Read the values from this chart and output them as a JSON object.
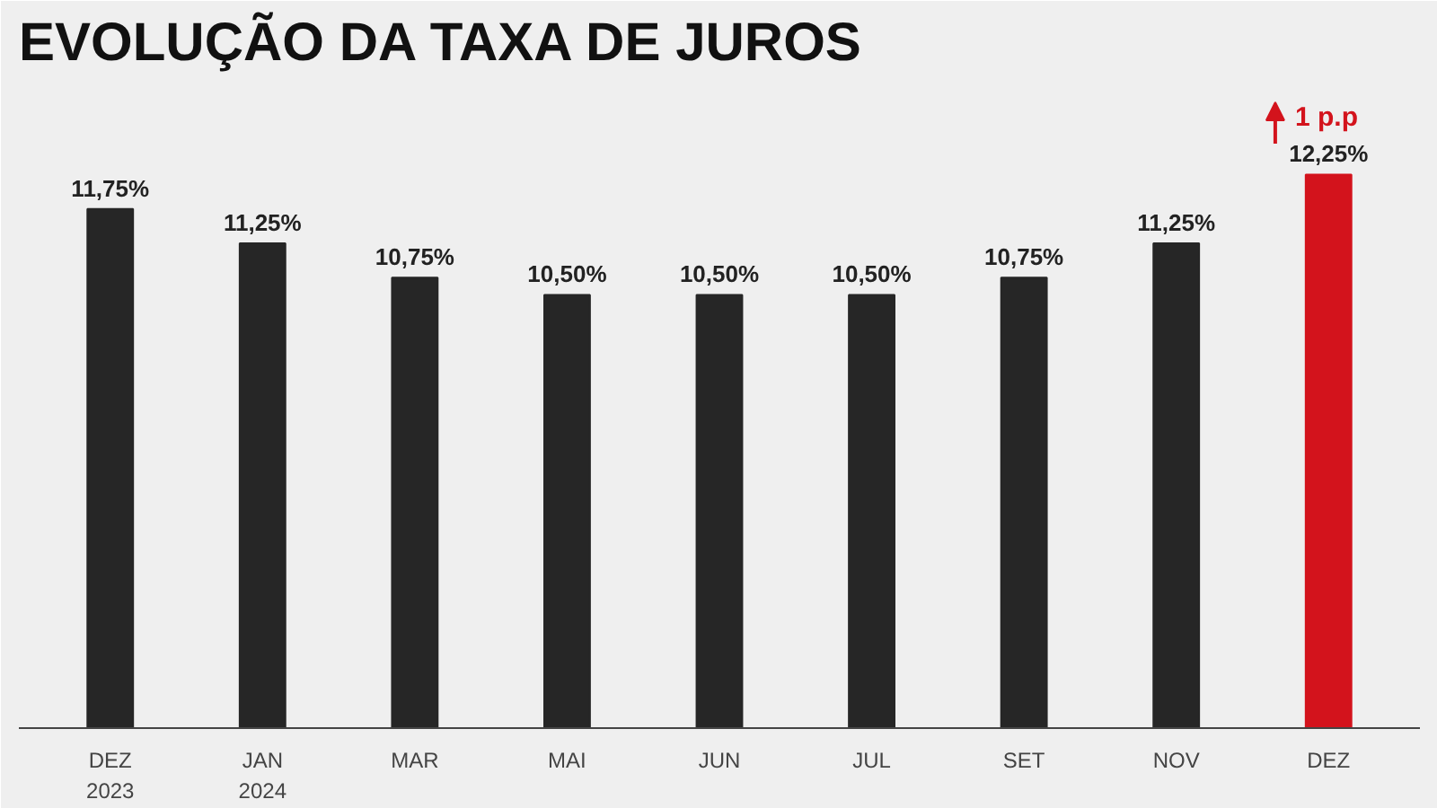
{
  "chart_data": {
    "type": "bar",
    "title": "EVOLUÇÃO DA TAXA DE JUROS",
    "categories": [
      "DEZ\n2023",
      "JAN\n2024",
      "MAR",
      "MAI",
      "JUN",
      "JUL",
      "SET",
      "NOV",
      "DEZ"
    ],
    "values": [
      11.75,
      11.25,
      10.75,
      10.5,
      10.5,
      10.5,
      10.75,
      11.25,
      12.25
    ],
    "colors": [
      "#262626",
      "#262626",
      "#262626",
      "#262626",
      "#262626",
      "#262626",
      "#262626",
      "#262626",
      "#d3131c"
    ],
    "value_labels": [
      "11,75%",
      "11,25%",
      "10,75%",
      "10,50%",
      "10,50%",
      "10,50%",
      "10,75%",
      "11,25%",
      "12,25%"
    ],
    "ylim": [
      4.2,
      13.6
    ],
    "annotations": [
      "1 p.p"
    ]
  }
}
